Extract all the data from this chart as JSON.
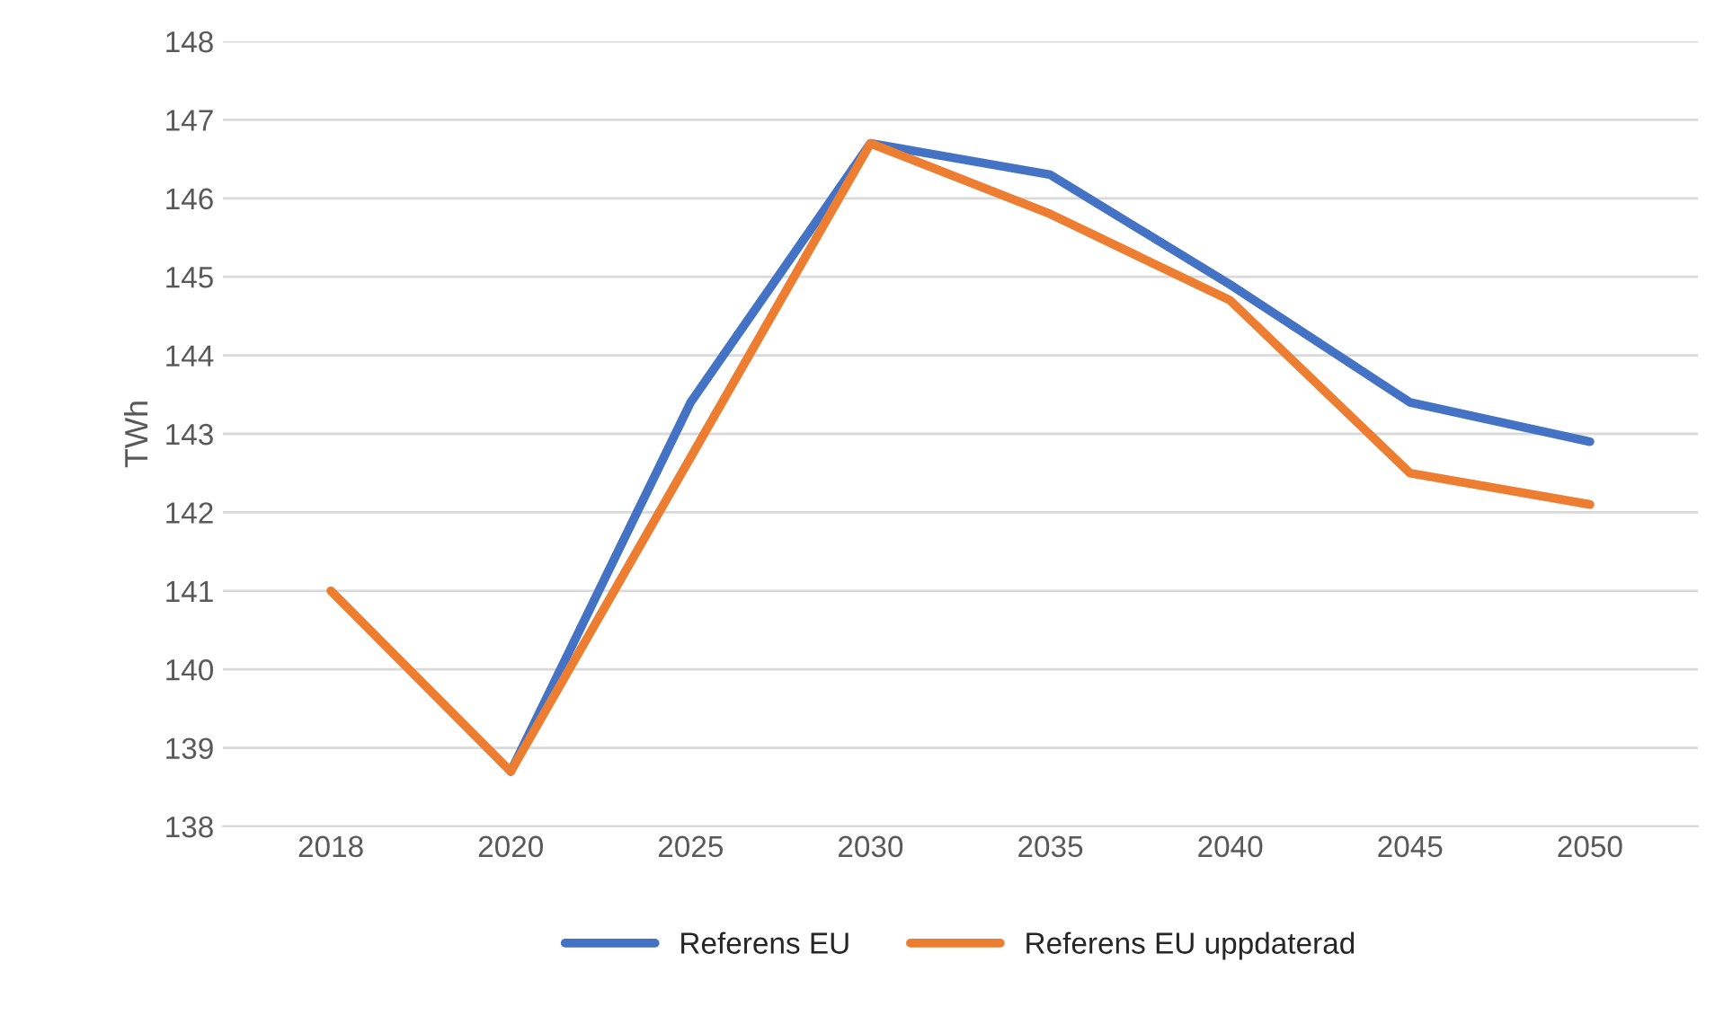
{
  "chart_data": {
    "type": "line",
    "ylabel": "TWh",
    "categories": [
      "2018",
      "2020",
      "2025",
      "2030",
      "2035",
      "2040",
      "2045",
      "2050"
    ],
    "series": [
      {
        "name": "Referens EU",
        "color": "#4472c4",
        "values": [
          null,
          138.7,
          143.4,
          146.7,
          146.3,
          144.9,
          143.4,
          142.9
        ]
      },
      {
        "name": "Referens EU uppdaterad",
        "color": "#ed7d31",
        "values": [
          141.0,
          138.7,
          142.7,
          146.7,
          145.8,
          144.7,
          142.5,
          142.1
        ]
      }
    ],
    "ylim": [
      138,
      148
    ],
    "yticks": [
      138,
      139,
      140,
      141,
      142,
      143,
      144,
      145,
      146,
      147,
      148
    ],
    "grid": "y",
    "legend": "bottom",
    "marker": "none",
    "line_style": "solid"
  }
}
